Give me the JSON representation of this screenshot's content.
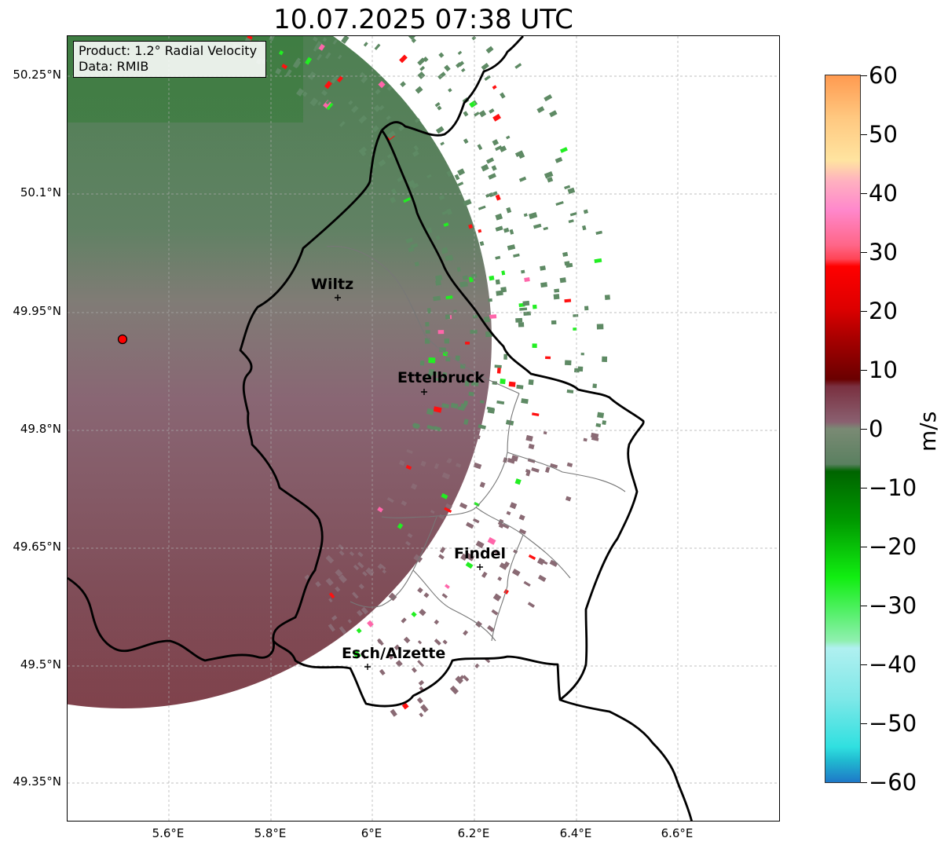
{
  "title": "10.07.2025 07:38 UTC",
  "info_box": {
    "line1": "Product: 1.2° Radial Velocity",
    "line2": "Data: RMIB"
  },
  "lat_ticks": [
    "50.25°N",
    "50.1°N",
    "49.95°N",
    "49.8°N",
    "49.65°N",
    "49.5°N",
    "49.35°N"
  ],
  "lon_ticks": [
    "5.6°E",
    "5.8°E",
    "6°E",
    "6.2°E",
    "6.4°E",
    "6.6°E"
  ],
  "cities": [
    {
      "name": "Wiltz"
    },
    {
      "name": "Ettelbruck"
    },
    {
      "name": "Findel"
    },
    {
      "name": "Esch/Alzette"
    }
  ],
  "colorbar": {
    "label": "m/s",
    "ticks": [
      "60",
      "50",
      "40",
      "30",
      "20",
      "10",
      "0",
      "−10",
      "−20",
      "−30",
      "−40",
      "−50",
      "−60"
    ],
    "colors": {
      "inbound_dark": "#006400",
      "inbound_bright": "#22ee22",
      "near_zero_green": "#5e8a64",
      "near_zero_red": "#8a6a74",
      "outbound_dark": "#7a0000",
      "outbound_bright": "#ff1010",
      "pink": "#ff88cc",
      "orange": "#ff9a50",
      "cyan": "#30e0e0",
      "blue": "#1e78c8"
    }
  },
  "radar_site_color": "#ff0000"
}
